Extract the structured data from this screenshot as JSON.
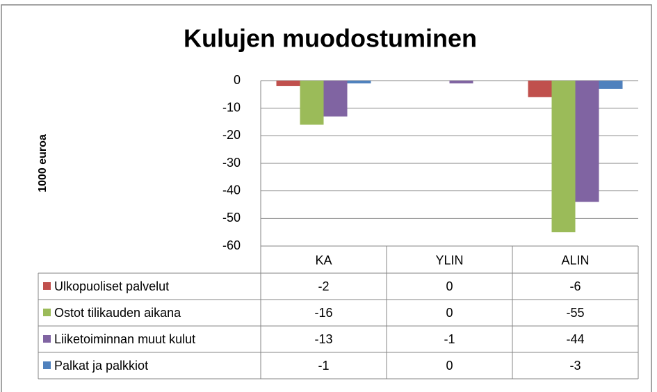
{
  "chart_data": {
    "type": "bar",
    "title": "Kulujen muodostuminen",
    "y_label": "1000 euroa",
    "categories": [
      "KA",
      "YLIN",
      "ALIN"
    ],
    "series": [
      {
        "name": "Ulkopuoliset palvelut",
        "color": "#c0504d",
        "values": [
          -2,
          0,
          -6
        ]
      },
      {
        "name": "Ostot tilikauden aikana",
        "color": "#9bbb59",
        "values": [
          -16,
          0,
          -55
        ]
      },
      {
        "name": "Liiketoiminnan muut kulut",
        "color": "#8064a2",
        "values": [
          -13,
          -1,
          -44
        ]
      },
      {
        "name": "Palkat ja palkkiot",
        "color": "#4f81bd",
        "values": [
          -1,
          0,
          -3
        ]
      }
    ],
    "ylim": [
      -60,
      0
    ],
    "yticks": [
      0,
      -10,
      -20,
      -30,
      -40,
      -50,
      -60
    ],
    "grid": true,
    "legend": "data-table"
  }
}
